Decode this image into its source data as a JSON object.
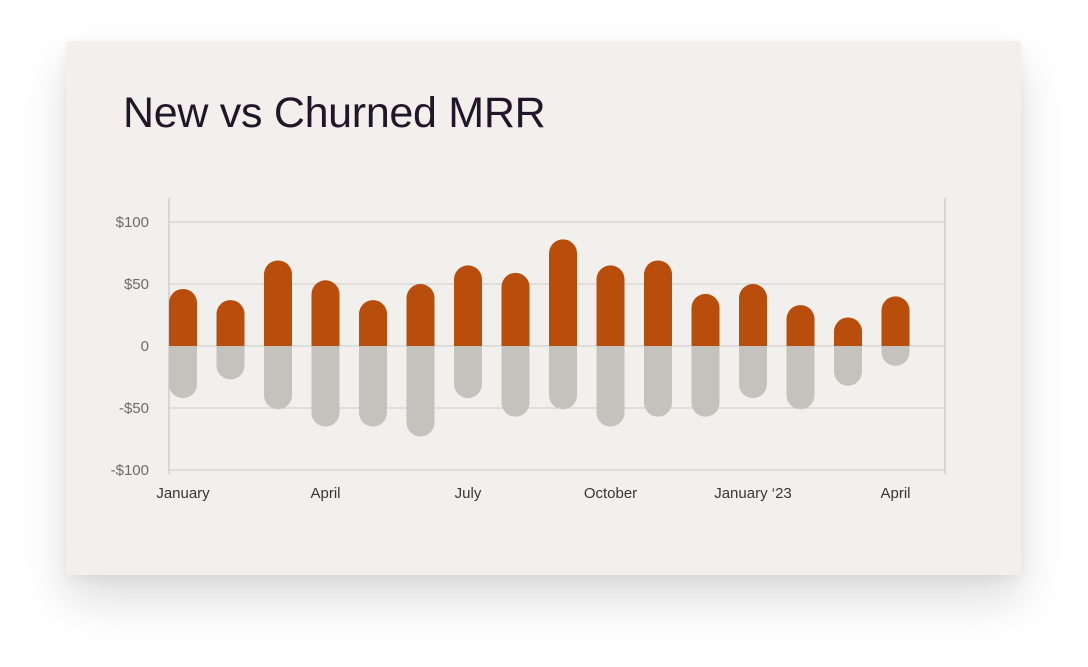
{
  "chart_data": {
    "type": "bar",
    "title": "New vs Churned MRR",
    "xlabel": "",
    "ylabel": "",
    "ylim": [
      -100,
      100
    ],
    "yticks": [
      {
        "value": 100,
        "label": "$100"
      },
      {
        "value": 50,
        "label": "$50"
      },
      {
        "value": 0,
        "label": "0"
      },
      {
        "value": -50,
        "label": "-$50"
      },
      {
        "value": -100,
        "label": "-$100"
      }
    ],
    "xtick_labels": [
      {
        "index": 0,
        "label": "January"
      },
      {
        "index": 3,
        "label": "April"
      },
      {
        "index": 6,
        "label": "July"
      },
      {
        "index": 9,
        "label": "October"
      },
      {
        "index": 12,
        "label": "January ‘23"
      },
      {
        "index": 15,
        "label": "April"
      }
    ],
    "categories_count": 16,
    "series": [
      {
        "values": [
          46,
          37,
          69,
          53,
          37,
          50,
          65,
          59,
          86,
          65,
          69,
          42,
          50,
          33,
          23,
          40
        ]
      },
      {
        "values": [
          -42,
          -27,
          -51,
          -65,
          -65,
          -73,
          -42,
          -57,
          -51,
          -65,
          -57,
          -57,
          -42,
          -51,
          -32,
          -16
        ]
      }
    ],
    "colors": {
      "new": "#b94d0b",
      "churned": "#c4c2bd",
      "grid": "#cfcdc8",
      "axis": "#bfbdb8"
    },
    "grid": true,
    "legend": "none"
  }
}
